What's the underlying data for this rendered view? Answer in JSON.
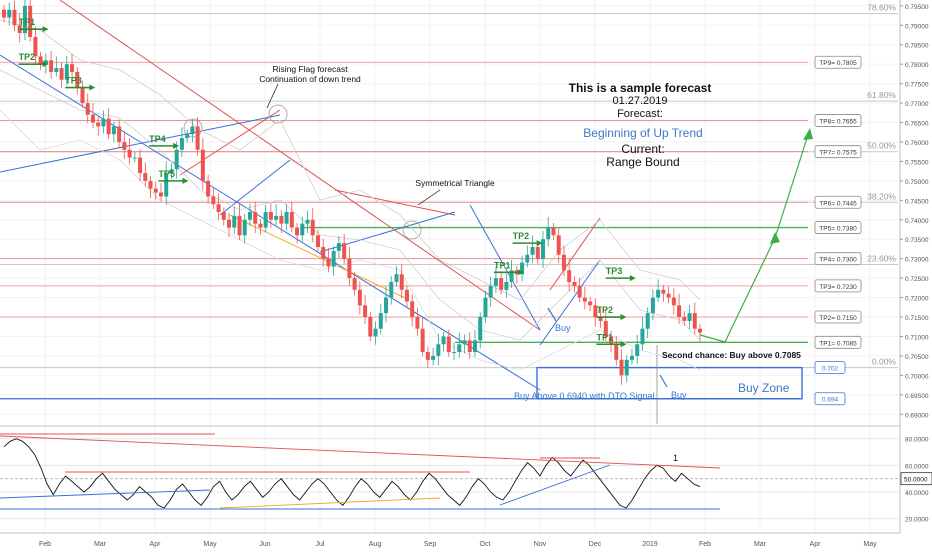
{
  "chart_data": [
    {
      "type": "candlestick",
      "title": "",
      "ylim": [
        0.6875,
        0.7965
      ],
      "y_ticks": [
        "0.79500",
        "0.79000",
        "0.78500",
        "0.78000",
        "0.77500",
        "0.77000",
        "0.76500",
        "0.76000",
        "0.75500",
        "0.75000",
        "0.74500",
        "0.74000",
        "0.73500",
        "0.73000",
        "0.72500",
        "0.72000",
        "0.71500",
        "0.71000",
        "0.70500",
        "0.70000",
        "0.69500",
        "0.69000"
      ],
      "x_ticks": [
        "Feb",
        "Mar",
        "Apr",
        "May",
        "Jun",
        "Jul",
        "Aug",
        "Sep",
        "Oct",
        "Nov",
        "Dec",
        "2019",
        "Feb",
        "Mar",
        "Apr",
        "May"
      ],
      "close_series": [
        0.792,
        0.794,
        0.79,
        0.788,
        0.795,
        0.787,
        0.782,
        0.78,
        0.781,
        0.778,
        0.779,
        0.776,
        0.78,
        0.778,
        0.774,
        0.77,
        0.767,
        0.765,
        0.764,
        0.766,
        0.762,
        0.764,
        0.76,
        0.758,
        0.756,
        0.756,
        0.752,
        0.75,
        0.748,
        0.747,
        0.746,
        0.752,
        0.753,
        0.758,
        0.761,
        0.762,
        0.764,
        0.758,
        0.75,
        0.746,
        0.744,
        0.742,
        0.74,
        0.738,
        0.741,
        0.736,
        0.74,
        0.742,
        0.739,
        0.738,
        0.742,
        0.74,
        0.741,
        0.739,
        0.742,
        0.738,
        0.736,
        0.739,
        0.74,
        0.736,
        0.733,
        0.73,
        0.728,
        0.732,
        0.734,
        0.73,
        0.725,
        0.722,
        0.718,
        0.715,
        0.71,
        0.712,
        0.716,
        0.72,
        0.724,
        0.726,
        0.722,
        0.719,
        0.715,
        0.712,
        0.706,
        0.704,
        0.705,
        0.708,
        0.71,
        0.706,
        0.706,
        0.708,
        0.709,
        0.706,
        0.709,
        0.715,
        0.72,
        0.723,
        0.725,
        0.722,
        0.724,
        0.727,
        0.726,
        0.729,
        0.731,
        0.733,
        0.73,
        0.735,
        0.738,
        0.736,
        0.731,
        0.727,
        0.724,
        0.723,
        0.72,
        0.719,
        0.718,
        0.715,
        0.714,
        0.71,
        0.708,
        0.704,
        0.7,
        0.704,
        0.705,
        0.708,
        0.712,
        0.716,
        0.72,
        0.722,
        0.721,
        0.72,
        0.718,
        0.715,
        0.714,
        0.716,
        0.712,
        0.711
      ],
      "horizontal_levels": [
        {
          "label": "TP9= 0.7805",
          "value": 0.7805
        },
        {
          "label": "TP8= 0.7655",
          "value": 0.7655
        },
        {
          "label": "TP7= 0.7575",
          "value": 0.7575
        },
        {
          "label": "TP6= 0.7445",
          "value": 0.7445
        },
        {
          "label": "TP5= 0.7380",
          "value": 0.738
        },
        {
          "label": "TP4= 0.7300",
          "value": 0.73
        },
        {
          "label": "TP3= 0.7230",
          "value": 0.723
        },
        {
          "label": "TP2= 0.7150",
          "value": 0.715
        },
        {
          "label": "TP1= 0.7085",
          "value": 0.7085
        }
      ],
      "zone_levels": [
        {
          "label": "0.7020",
          "value": 0.702
        },
        {
          "label": "0.6940",
          "value": 0.694
        }
      ],
      "fib_levels": [
        {
          "label": "78.60%",
          "value": 0.793
        },
        {
          "label": "61.80%",
          "value": 0.7705
        },
        {
          "label": "50.00%",
          "value": 0.7575
        },
        {
          "label": "38.20%",
          "value": 0.7445
        },
        {
          "label": "23.60%",
          "value": 0.7285
        },
        {
          "label": "0.00%",
          "value": 0.702
        }
      ],
      "tp_markers": [
        {
          "label": "TP1",
          "x_frac": 0.02,
          "value": 0.789
        },
        {
          "label": "TP2",
          "x_frac": 0.02,
          "value": 0.78
        },
        {
          "label": "TP3",
          "x_frac": 0.07,
          "value": 0.774
        },
        {
          "label": "TP4",
          "x_frac": 0.16,
          "value": 0.759
        },
        {
          "label": "TP5",
          "x_frac": 0.17,
          "value": 0.75
        },
        {
          "label": "TP1",
          "x_frac": 0.53,
          "value": 0.7265
        },
        {
          "label": "TP2",
          "x_frac": 0.55,
          "value": 0.734
        },
        {
          "label": "TP3",
          "x_frac": 0.65,
          "value": 0.725
        },
        {
          "label": "TP2",
          "x_frac": 0.64,
          "value": 0.715
        },
        {
          "label": "TP1",
          "x_frac": 0.64,
          "value": 0.708
        }
      ],
      "annotations": {
        "rising_flag": "Rising Flag forecast\nContinuation of down trend",
        "symmetrical_triangle": "Symmetrical Triangle",
        "forecast_title": "This is a sample forecast",
        "forecast_date": "01.27.2019",
        "forecast_label": "Forecast:",
        "forecast_value": "Beginning of Up Trend",
        "current_label": "Current:",
        "current_value": "Range Bound",
        "second_chance": "Second chance: Buy above 0.7085",
        "buy_above": "Buy Above 0.6940 with DTO Signal",
        "buy_zone": "Buy Zone",
        "buy_1": "Buy",
        "buy_2": "Buy"
      },
      "colors": {
        "bull": "#26a69a",
        "bear": "#ef5350",
        "tp_green": "#2e8b2e",
        "resistance_red": "#e05050",
        "support_blue": "#3a6fd8",
        "forecast_blue": "#3a78c8",
        "fib_gray": "#c8c8c8"
      }
    },
    {
      "type": "line",
      "title": "",
      "ylim": [
        10,
        88
      ],
      "y_ticks": [
        "80.0000",
        "60.0000",
        "40.0000",
        "20.0000"
      ],
      "current_value_label": "50.0000",
      "peak_label": "1",
      "series": [
        {
          "values": [
            74,
            78,
            80,
            78,
            74,
            68,
            58,
            46,
            38,
            46,
            52,
            48,
            44,
            40,
            44,
            50,
            54,
            48,
            42,
            38,
            34,
            38,
            44,
            40,
            36,
            30,
            28,
            34,
            42,
            46,
            40,
            34,
            30,
            36,
            44,
            48,
            40,
            34,
            38,
            44,
            48,
            42,
            36,
            40,
            46,
            50,
            44,
            38,
            34,
            40,
            46,
            50,
            46,
            40,
            34,
            30,
            36,
            44,
            50,
            46,
            40,
            36,
            42,
            48,
            44,
            38,
            34,
            40,
            48,
            54,
            50,
            44,
            38,
            34,
            30,
            36,
            44,
            50,
            46,
            40,
            36,
            34,
            40,
            48,
            56,
            62,
            58,
            52,
            60,
            66,
            62,
            56,
            52,
            58,
            64,
            60,
            54,
            48,
            42,
            36,
            30,
            28,
            34,
            42,
            50,
            56,
            60,
            58,
            52,
            48,
            54,
            50,
            46,
            44
          ]
        }
      ],
      "horizontal_levels": [
        80,
        60,
        50,
        40,
        20
      ]
    }
  ]
}
